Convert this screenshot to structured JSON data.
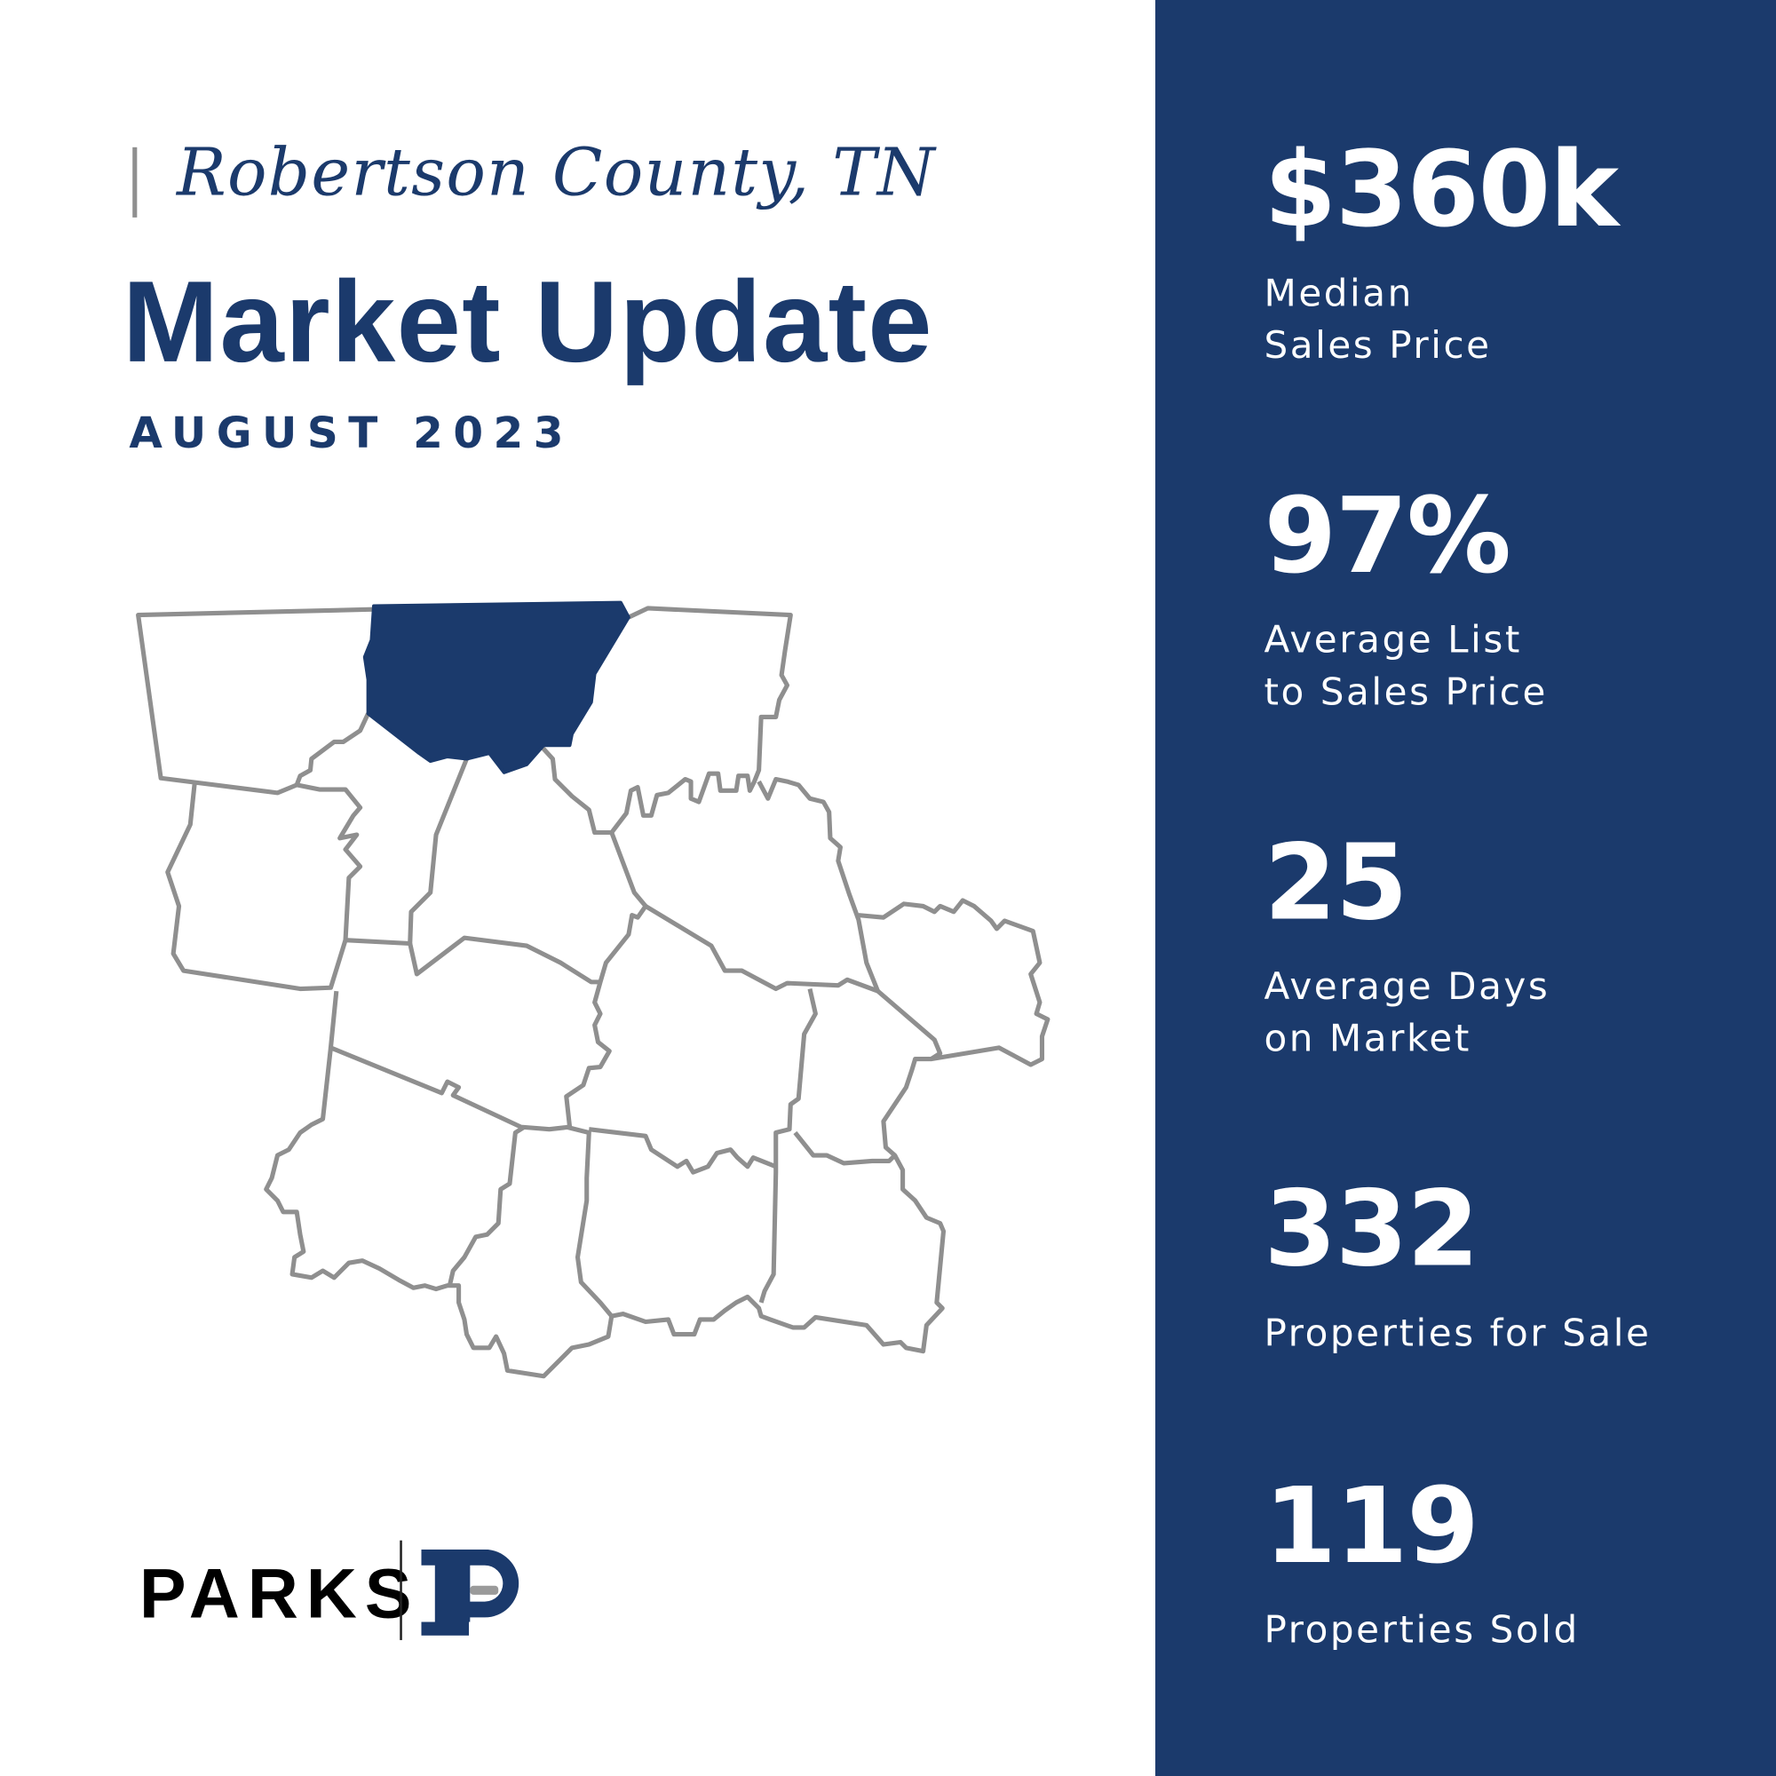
{
  "header": {
    "location": "Robertson County, TN",
    "title": "Market Update",
    "period": "AUGUST 2023"
  },
  "map": {
    "highlighted_county": "Robertson County",
    "highlight_color": "#1b3a6c",
    "outline_color": "#8f8f8f"
  },
  "stats": [
    {
      "value": "$360k",
      "label": "Median\nSales Price"
    },
    {
      "value": "97%",
      "label": "Average List\nto Sales Price"
    },
    {
      "value": "25",
      "label": "Average Days\non Market"
    },
    {
      "value": "332",
      "label": "Properties for Sale"
    },
    {
      "value": "119",
      "label": "Properties Sold"
    }
  ],
  "logo": {
    "wordmark": "PARKS",
    "brand_color": "#1b3a6c"
  },
  "colors": {
    "panel": "#1b3a6c",
    "text_primary": "#1b3a6c"
  }
}
